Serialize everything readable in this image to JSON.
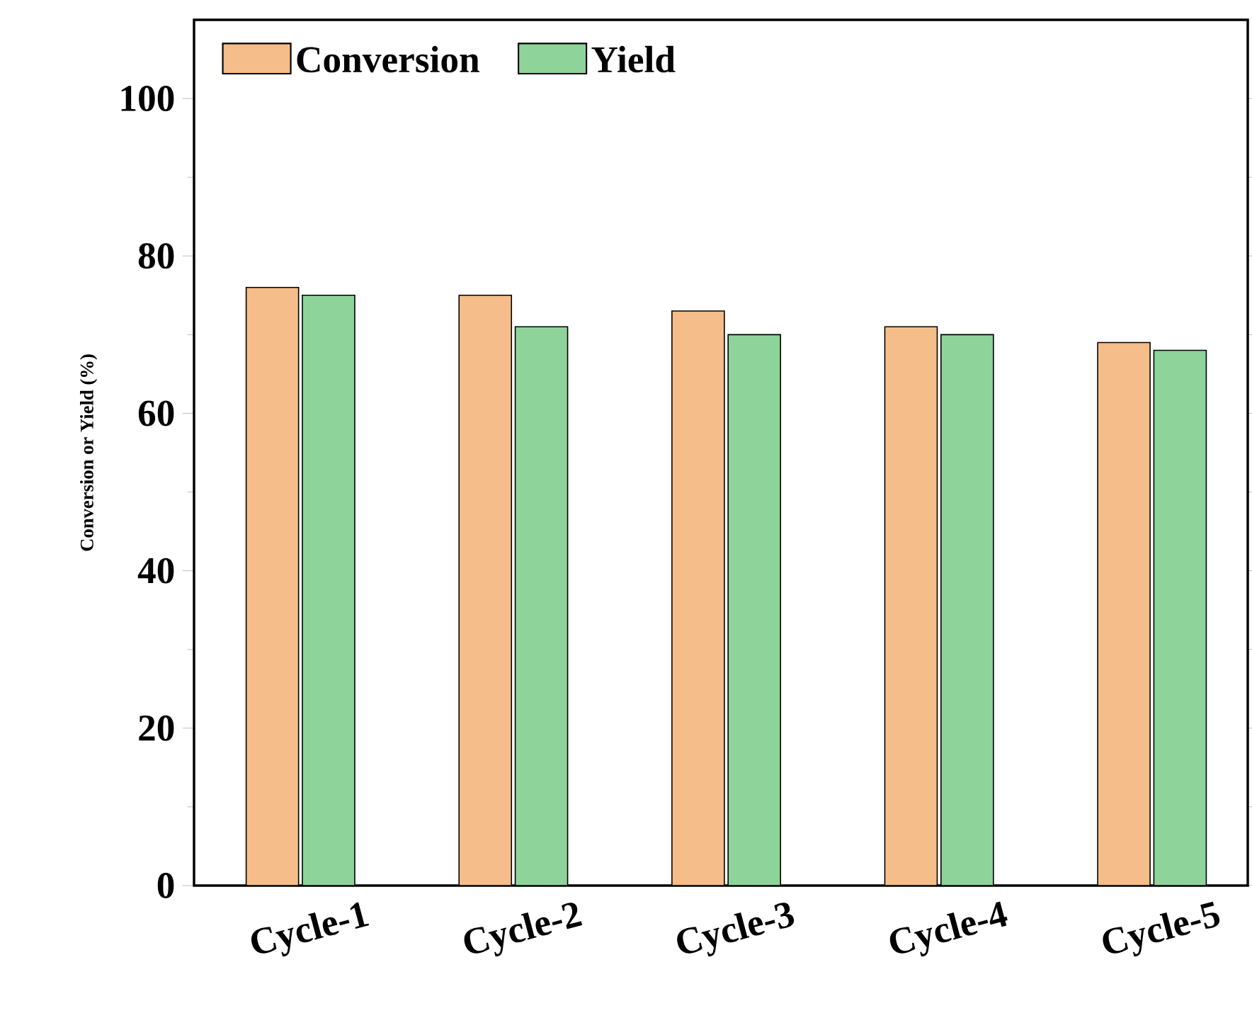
{
  "chart_data": {
    "type": "bar",
    "ylabel": "Conversion or Yield (%)",
    "categories": [
      "Cycle-1",
      "Cycle-2",
      "Cycle-3",
      "Cycle-4",
      "Cycle-5"
    ],
    "series": [
      {
        "name": "Conversion",
        "color": "#f5bd8a",
        "values": [
          76,
          75,
          73,
          71,
          69
        ]
      },
      {
        "name": "Yield",
        "color": "#8ed49a",
        "values": [
          75,
          71,
          70,
          70,
          68
        ]
      }
    ],
    "ylim": [
      0,
      110
    ],
    "yticks": [
      0,
      20,
      40,
      60,
      80,
      100
    ],
    "legend": "top left",
    "grid": false
  }
}
